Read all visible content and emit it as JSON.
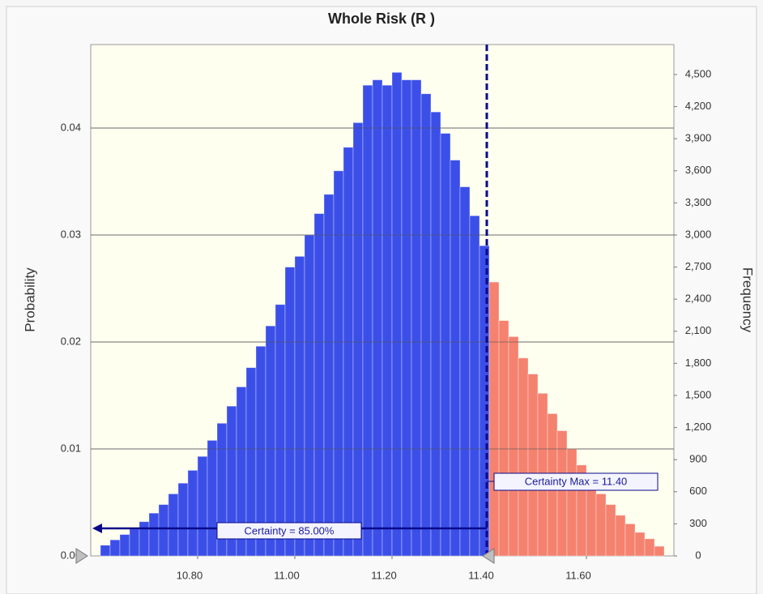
{
  "chart_data": {
    "type": "histogram",
    "title": "Whole Risk (R )",
    "ylabel": "Probability",
    "y2label": "Frequency",
    "bins": [
      10.6,
      10.62,
      10.64,
      10.66,
      10.68,
      10.7,
      10.72,
      10.74,
      10.76,
      10.78,
      10.8,
      10.82,
      10.84,
      10.86,
      10.88,
      10.9,
      10.92,
      10.94,
      10.96,
      10.98,
      11.0,
      11.02,
      11.04,
      11.06,
      11.08,
      11.1,
      11.12,
      11.14,
      11.16,
      11.18,
      11.2,
      11.22,
      11.24,
      11.26,
      11.28,
      11.3,
      11.32,
      11.34,
      11.36,
      11.38,
      11.4,
      11.42,
      11.44,
      11.46,
      11.48,
      11.5,
      11.52,
      11.54,
      11.56,
      11.58,
      11.6,
      11.62,
      11.64,
      11.66,
      11.68,
      11.7,
      11.72,
      11.74,
      11.76
    ],
    "values": [
      0.001,
      0.0015,
      0.002,
      0.0025,
      0.0032,
      0.004,
      0.0048,
      0.0058,
      0.0068,
      0.008,
      0.0093,
      0.0108,
      0.0124,
      0.014,
      0.0158,
      0.0176,
      0.0196,
      0.0215,
      0.0235,
      0.027,
      0.028,
      0.03,
      0.032,
      0.0338,
      0.036,
      0.0382,
      0.0405,
      0.044,
      0.0445,
      0.044,
      0.0452,
      0.0445,
      0.0445,
      0.0432,
      0.0415,
      0.0395,
      0.037,
      0.0345,
      0.0318,
      0.029,
      0.0256,
      0.022,
      0.0205,
      0.0185,
      0.017,
      0.0152,
      0.0133,
      0.0117,
      0.01,
      0.0085,
      0.0072,
      0.0058,
      0.0048,
      0.0038,
      0.003,
      0.0022,
      0.0016,
      0.0009
    ],
    "color": "#3b4fe8",
    "tail_color": "#f4826f",
    "certainty_max": {
      "value": 11.4,
      "label": "Certainty Max = 11.40"
    },
    "certainty": "Certainty = 85.00%",
    "xlim": [
      10.58,
      11.78
    ],
    "xticks": [
      {
        "value": 10.8,
        "label": "10.80"
      },
      {
        "value": 11.0,
        "label": "11.00"
      },
      {
        "value": 11.2,
        "label": "11.20"
      },
      {
        "value": 11.4,
        "label": "11.40"
      },
      {
        "value": 11.6,
        "label": "11.60"
      }
    ],
    "ylim": [
      0,
      0.0478
    ],
    "yticks": [
      {
        "value": 0,
        "label": "0.00"
      },
      0.01,
      0.02,
      0.03,
      0.04
    ],
    "y2lim": [
      0,
      4780
    ],
    "y2ticks": [
      0,
      300,
      600,
      900,
      {
        "value": 1200,
        "label": "1,200"
      },
      {
        "value": 1500,
        "label": "1,500"
      },
      {
        "value": 1800,
        "label": "1,800"
      },
      {
        "value": 2100,
        "label": "2,100"
      },
      {
        "value": 2400,
        "label": "2,400"
      },
      {
        "value": 2700,
        "label": "2,700"
      },
      {
        "value": 3000,
        "label": "3,000"
      },
      {
        "value": 3300,
        "label": "3,300"
      },
      {
        "value": 3600,
        "label": "3,600"
      },
      {
        "value": 3900,
        "label": "3,900"
      },
      {
        "value": 4200,
        "label": "4,200"
      },
      {
        "value": 4500,
        "label": "4,500"
      }
    ],
    "grid": true
  }
}
